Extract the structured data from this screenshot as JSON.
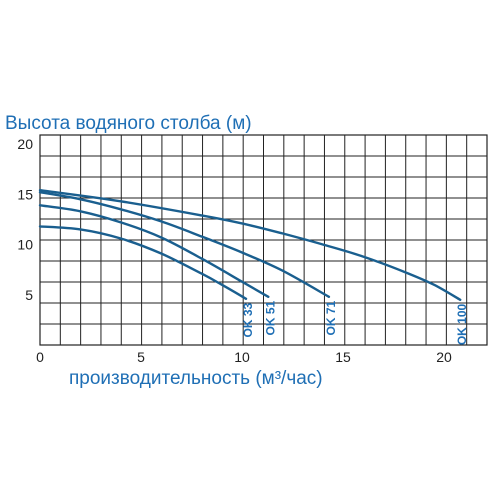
{
  "chart_data": {
    "type": "line",
    "title": "",
    "ylabel": "Высота водяного столба (м)",
    "xlabel": "производительность (м³/час)",
    "xlim": [
      0,
      22
    ],
    "ylim": [
      0,
      20
    ],
    "x_ticks": [
      0,
      5,
      10,
      15,
      20
    ],
    "y_ticks": [
      5,
      10,
      15,
      20
    ],
    "grid": true,
    "colors": {
      "curve": "#1a5f8f",
      "label": "#1f6fb5",
      "grid": "#222222"
    },
    "series": [
      {
        "name": "OK 33",
        "points": [
          [
            0,
            11.8
          ],
          [
            2,
            11.5
          ],
          [
            4,
            10.6
          ],
          [
            6,
            9.1
          ],
          [
            8,
            7.1
          ],
          [
            9,
            6.0
          ],
          [
            10.2,
            4.6
          ]
        ]
      },
      {
        "name": "OK 51",
        "points": [
          [
            0,
            13.9
          ],
          [
            2,
            13.3
          ],
          [
            4,
            12.2
          ],
          [
            6,
            10.7
          ],
          [
            8,
            8.6
          ],
          [
            10,
            6.3
          ],
          [
            11.3,
            4.8
          ]
        ]
      },
      {
        "name": "OK 71",
        "points": [
          [
            0,
            15.2
          ],
          [
            2,
            14.5
          ],
          [
            4,
            13.5
          ],
          [
            6,
            12.3
          ],
          [
            8,
            10.8
          ],
          [
            10,
            9.2
          ],
          [
            12,
            7.4
          ],
          [
            14.3,
            4.8
          ]
        ]
      },
      {
        "name": "OK 100",
        "points": [
          [
            0,
            15.4
          ],
          [
            4,
            14.3
          ],
          [
            8,
            12.9
          ],
          [
            10,
            12.1
          ],
          [
            12,
            11.1
          ],
          [
            14,
            10.0
          ],
          [
            16,
            8.8
          ],
          [
            18,
            7.3
          ],
          [
            19.5,
            6.0
          ],
          [
            20.8,
            4.5
          ]
        ]
      }
    ]
  }
}
